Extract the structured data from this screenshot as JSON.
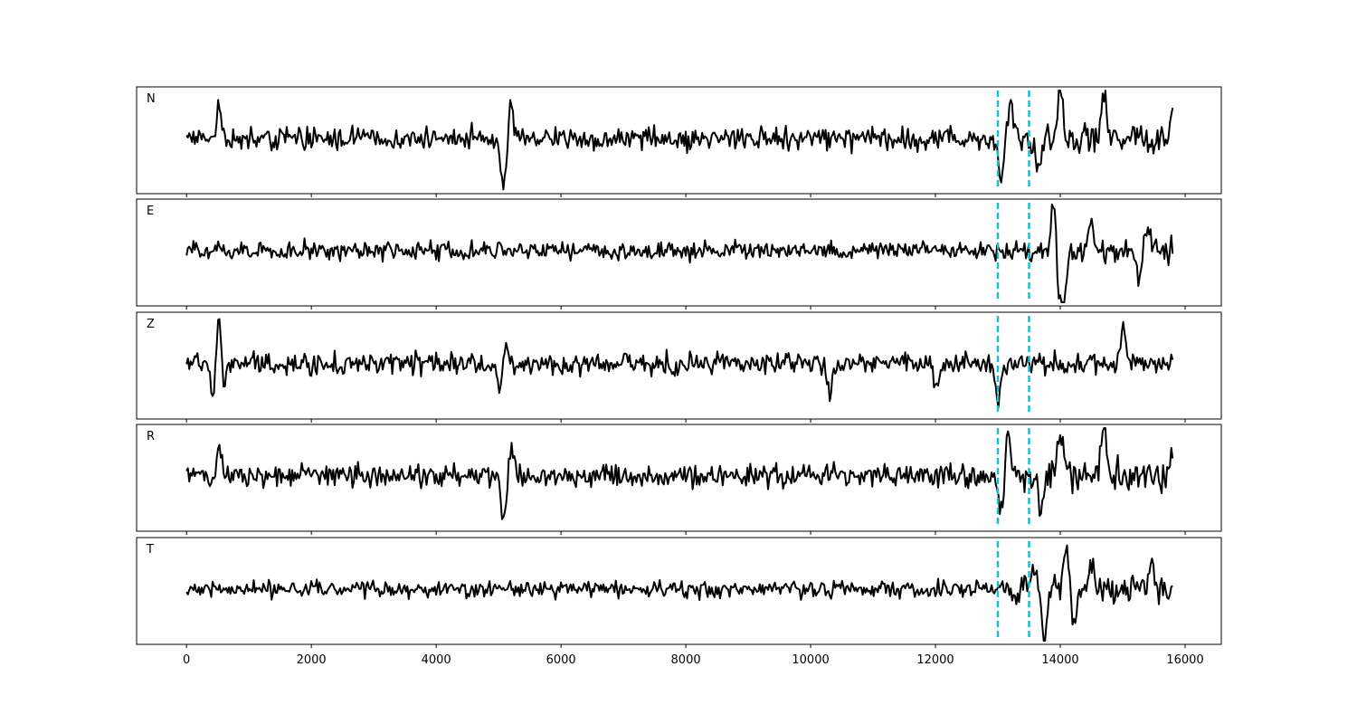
{
  "chart_data": {
    "type": "line",
    "title": "",
    "xlabel": "",
    "ylabel": "",
    "xlim": [
      -800,
      16580
    ],
    "x_ticks": [
      0,
      2000,
      4000,
      6000,
      8000,
      10000,
      12000,
      14000,
      16000
    ],
    "x_tick_labels": [
      "0",
      "2000",
      "4000",
      "6000",
      "8000",
      "10000",
      "12000",
      "14000",
      "16000"
    ],
    "grid": false,
    "line_color": "#000000",
    "marker_color": "#17becf",
    "markers": [
      13000,
      13500
    ],
    "samples": 15800,
    "panels": [
      {
        "name": "N",
        "features": [
          [
            520,
            0.85
          ],
          [
            5080,
            -1.7
          ],
          [
            5200,
            1.2
          ],
          [
            13060,
            -1.5
          ],
          [
            13200,
            1.4
          ],
          [
            13650,
            -1.1
          ],
          [
            14000,
            1.55
          ],
          [
            14700,
            1.6
          ],
          [
            15800,
            0.8
          ]
        ],
        "noise": 0.55,
        "late_noise": 0.8
      },
      {
        "name": "E",
        "features": [
          [
            13900,
            1.9
          ],
          [
            13980,
            -1.4
          ],
          [
            14050,
            -1.7
          ],
          [
            14500,
            0.9
          ],
          [
            15250,
            -0.9
          ],
          [
            15400,
            0.8
          ]
        ],
        "noise": 0.45,
        "late_noise": 0.65
      },
      {
        "name": "Z",
        "features": [
          [
            430,
            -1.2
          ],
          [
            520,
            1.7
          ],
          [
            600,
            -1.0
          ],
          [
            5050,
            -1.4
          ],
          [
            5100,
            1.3
          ],
          [
            10300,
            -1.0
          ],
          [
            12000,
            -0.9
          ],
          [
            13000,
            -1.3
          ],
          [
            15000,
            1.3
          ]
        ],
        "noise": 0.55,
        "late_noise": 0.55
      },
      {
        "name": "R",
        "features": [
          [
            520,
            0.9
          ],
          [
            5080,
            -1.6
          ],
          [
            5200,
            1.1
          ],
          [
            13060,
            -1.2
          ],
          [
            13150,
            1.4
          ],
          [
            13700,
            -1.2
          ],
          [
            14000,
            1.6
          ],
          [
            14700,
            1.6
          ],
          [
            15800,
            0.8
          ]
        ],
        "noise": 0.55,
        "late_noise": 0.8
      },
      {
        "name": "T",
        "features": [
          [
            13560,
            0.9
          ],
          [
            13750,
            -1.7
          ],
          [
            14100,
            1.6
          ],
          [
            14200,
            -1.1
          ],
          [
            14500,
            0.8
          ],
          [
            15450,
            0.9
          ]
        ],
        "noise": 0.4,
        "late_noise": 0.7
      }
    ]
  }
}
